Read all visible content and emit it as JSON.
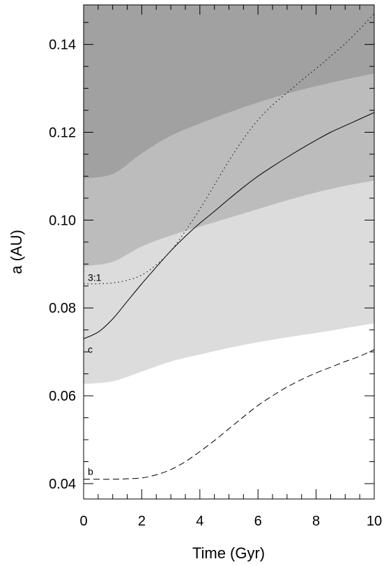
{
  "chart_data": {
    "type": "area",
    "title": "",
    "xlabel": "Time (Gyr)",
    "ylabel": "a (AU)",
    "xlim": [
      0,
      10
    ],
    "ylim": [
      0.0365,
      0.149
    ],
    "x_ticks": [
      0,
      2,
      4,
      6,
      8,
      10
    ],
    "x_tick_labels": [
      "0",
      "2",
      "4",
      "6",
      "8",
      "10"
    ],
    "x_minor_step": 0.5,
    "y_ticks": [
      0.04,
      0.06,
      0.08,
      0.1,
      0.12,
      0.14
    ],
    "y_tick_labels": [
      "0.04",
      "0.06",
      "0.08",
      "0.10",
      "0.12",
      "0.14"
    ],
    "y_minor_step": 0.005,
    "grid": false,
    "colors": {
      "dark_band": "#a1a1a1",
      "mid_band": "#bcbcbc",
      "light_band": "#dcdcdc",
      "background": "#ffffff"
    },
    "boundaries": [
      {
        "x": [
          0,
          1,
          2,
          3,
          4,
          5,
          6,
          7,
          8,
          9,
          10
        ],
        "y": [
          0.0627,
          0.0633,
          0.0655,
          0.0678,
          0.0694,
          0.0709,
          0.0722,
          0.0733,
          0.0743,
          0.0754,
          0.0765
        ]
      },
      {
        "x": [
          0,
          1,
          2,
          3,
          4,
          5,
          6,
          7,
          8,
          9,
          10
        ],
        "y": [
          0.0895,
          0.0905,
          0.094,
          0.0965,
          0.0985,
          0.1005,
          0.1025,
          0.1045,
          0.1063,
          0.1078,
          0.109
        ]
      },
      {
        "x": [
          0,
          1,
          2,
          3,
          4,
          5,
          6,
          7,
          8,
          9,
          10
        ],
        "y": [
          0.1095,
          0.1105,
          0.1152,
          0.1192,
          0.122,
          0.1245,
          0.1268,
          0.1288,
          0.1305,
          0.132,
          0.1334
        ]
      }
    ],
    "series": [
      {
        "label": "b",
        "style": "dashed",
        "x": [
          0,
          0.5,
          1,
          1.5,
          2,
          2.5,
          3,
          3.5,
          4,
          4.5,
          5,
          5.5,
          6,
          6.5,
          7,
          7.5,
          8,
          8.5,
          9,
          9.5,
          10
        ],
        "y": [
          0.041,
          0.041,
          0.041,
          0.0411,
          0.0413,
          0.042,
          0.0432,
          0.045,
          0.0473,
          0.0498,
          0.0525,
          0.0552,
          0.0578,
          0.06,
          0.062,
          0.0637,
          0.0652,
          0.0665,
          0.0678,
          0.069,
          0.0705
        ]
      },
      {
        "label": "c",
        "style": "solid",
        "x": [
          0,
          0.5,
          1,
          1.5,
          2,
          2.5,
          3,
          3.5,
          4,
          4.5,
          5,
          5.5,
          6,
          6.5,
          7,
          7.5,
          8,
          8.5,
          9,
          9.5,
          10
        ],
        "y": [
          0.073,
          0.0745,
          0.0775,
          0.0815,
          0.0855,
          0.0893,
          0.093,
          0.0963,
          0.0993,
          0.102,
          0.1048,
          0.1075,
          0.11,
          0.1122,
          0.1143,
          0.1163,
          0.1182,
          0.12,
          0.1215,
          0.123,
          0.1245
        ]
      },
      {
        "label": "3:1",
        "style": "dotted",
        "x": [
          0,
          0.5,
          1,
          1.5,
          2,
          2.5,
          3,
          3.5,
          4,
          4.5,
          5,
          5.5,
          6,
          6.5,
          7,
          7.5,
          8,
          8.5,
          9,
          9.5,
          10
        ],
        "y": [
          0.0855,
          0.0855,
          0.0857,
          0.0863,
          0.0875,
          0.0898,
          0.093,
          0.0975,
          0.1025,
          0.108,
          0.1135,
          0.1185,
          0.1228,
          0.1262,
          0.129,
          0.1318,
          0.1345,
          0.1373,
          0.1402,
          0.1435,
          0.147
        ]
      }
    ]
  }
}
